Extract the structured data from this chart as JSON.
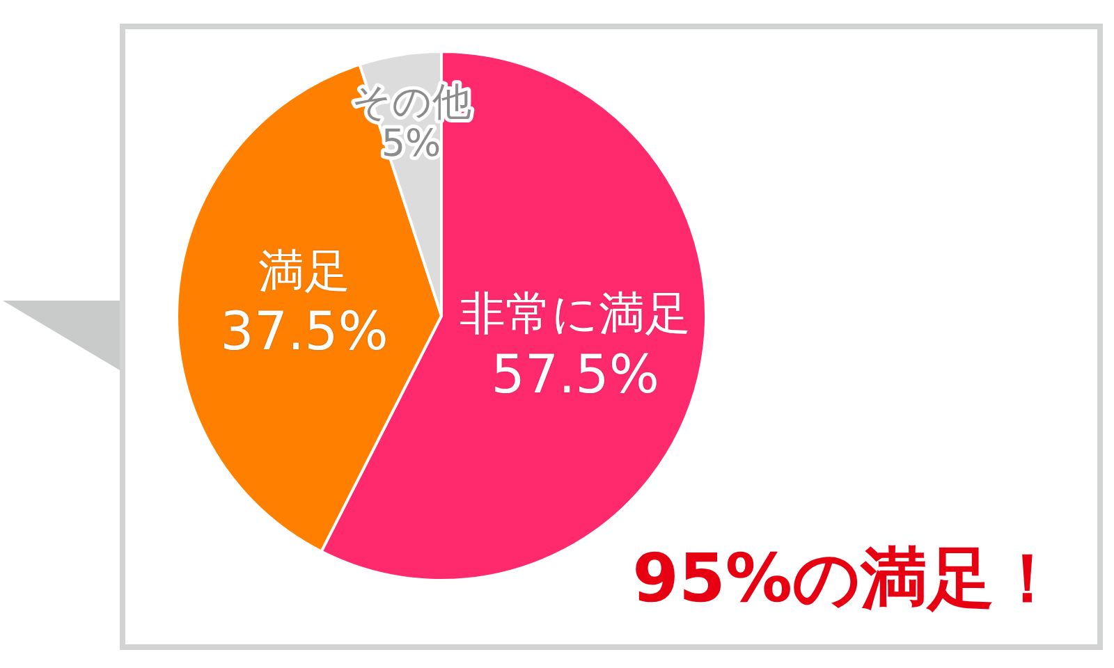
{
  "chart_data": {
    "type": "pie",
    "categories": [
      "非常に満足",
      "満足",
      "その他"
    ],
    "values": [
      57.5,
      37.5,
      5
    ],
    "colors": [
      "#ff2a6e",
      "#ff8000",
      "#dcdcdc"
    ],
    "value_labels": [
      "57.5%",
      "37.5%",
      "5%"
    ],
    "annotations": [
      "95%の満足！"
    ]
  }
}
